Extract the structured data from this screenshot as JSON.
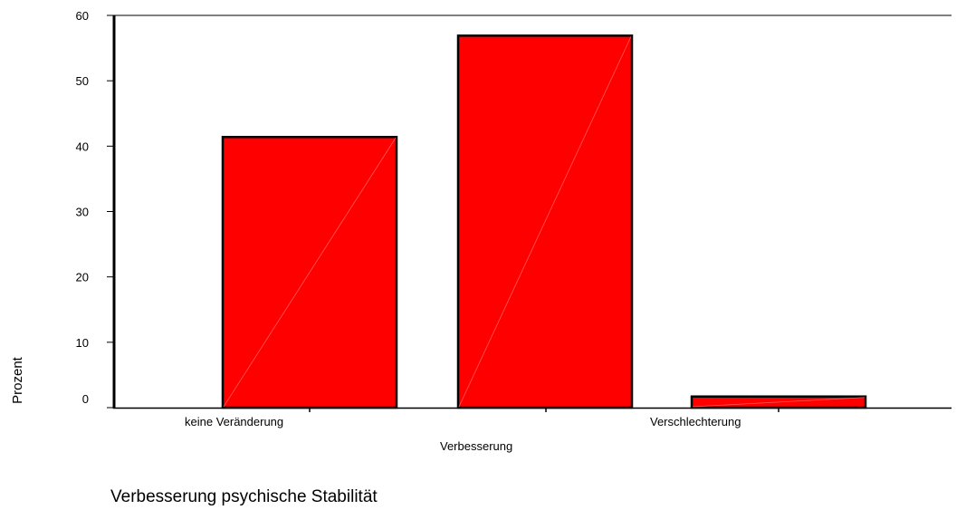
{
  "chart_data": {
    "type": "bar",
    "title": "",
    "xlabel": "Verbesserung psychische Stabilität",
    "ylabel": "Prozent",
    "categories": [
      "keine Veränderung",
      "Verbesserung",
      "Verschlechterung"
    ],
    "values": [
      41.4,
      56.9,
      1.7
    ],
    "ylim": [
      0,
      60
    ],
    "yticks": [
      0,
      10,
      20,
      30,
      40,
      50,
      60
    ],
    "grid": false,
    "legend": "none",
    "colors": {
      "bar_fill": "#ff0000",
      "bar_stroke": "#000000",
      "axis": "#000000"
    }
  }
}
